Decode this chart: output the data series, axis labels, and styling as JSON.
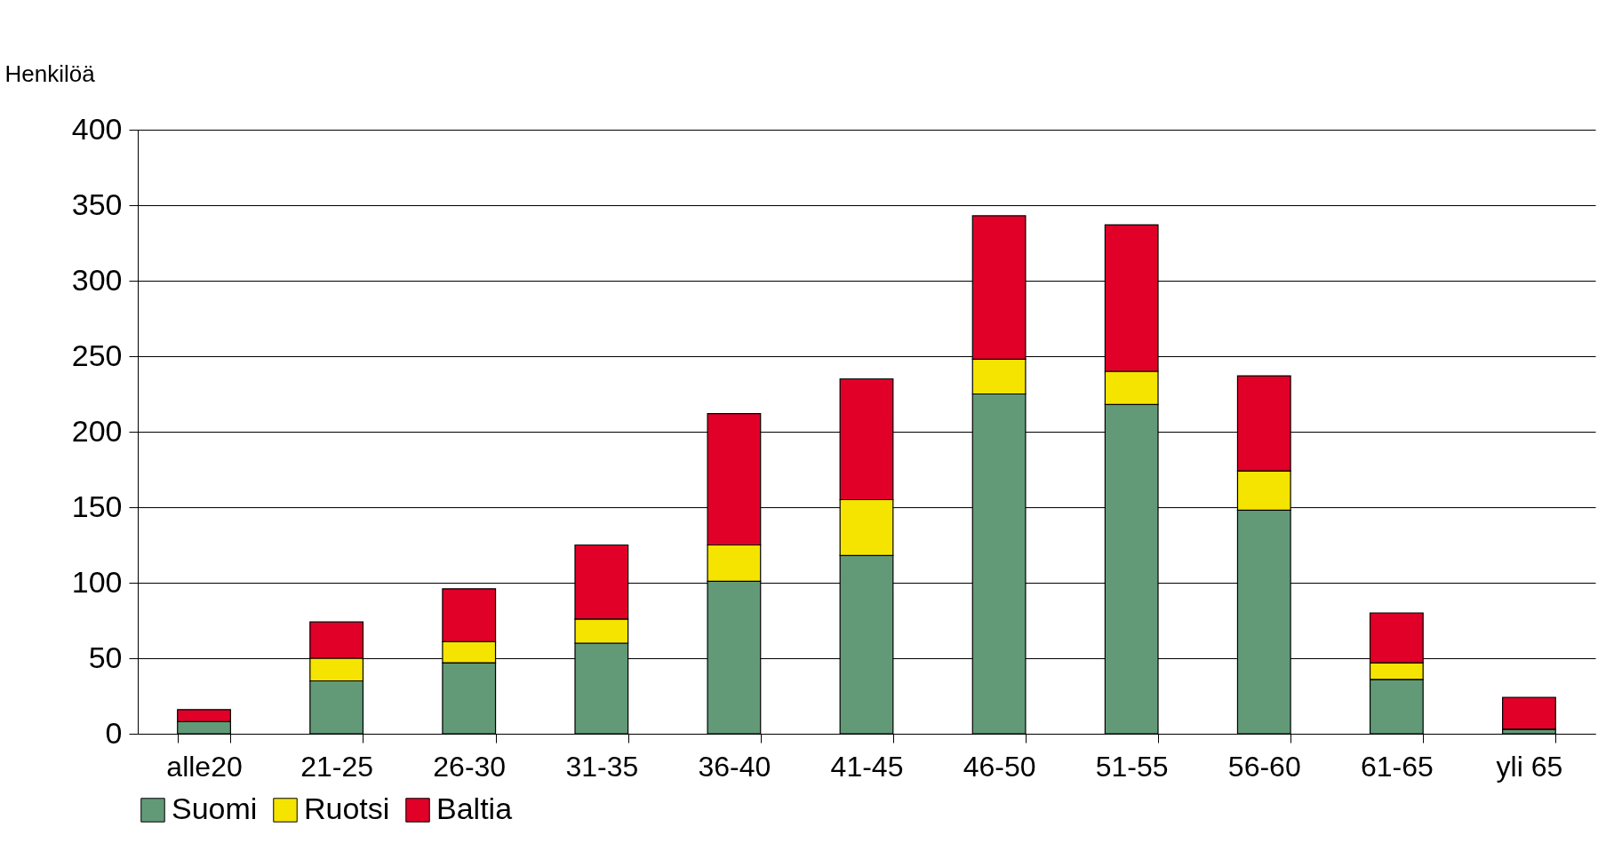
{
  "chart_data": {
    "type": "bar",
    "stacked": true,
    "ylabel": "Henkilöä",
    "categories": [
      "alle20",
      "21-25",
      "26-30",
      "31-35",
      "36-40",
      "41-45",
      "46-50",
      "51-55",
      "56-60",
      "61-65",
      "yli 65"
    ],
    "series": [
      {
        "name": "Suomi",
        "color": "#629a78",
        "values": [
          8,
          35,
          47,
          60,
          101,
          118,
          225,
          218,
          148,
          36,
          3
        ]
      },
      {
        "name": "Ruotsi",
        "color": "#f5e400",
        "values": [
          0,
          15,
          14,
          16,
          24,
          37,
          23,
          22,
          26,
          11,
          0
        ]
      },
      {
        "name": "Baltia",
        "color": "#e00028",
        "values": [
          8,
          24,
          35,
          49,
          87,
          80,
          95,
          97,
          63,
          33,
          21
        ]
      }
    ],
    "ylim": [
      0,
      400
    ],
    "yticks": [
      0,
      50,
      100,
      150,
      200,
      250,
      300,
      350,
      400
    ],
    "grid": "y",
    "legend": "bottom"
  }
}
